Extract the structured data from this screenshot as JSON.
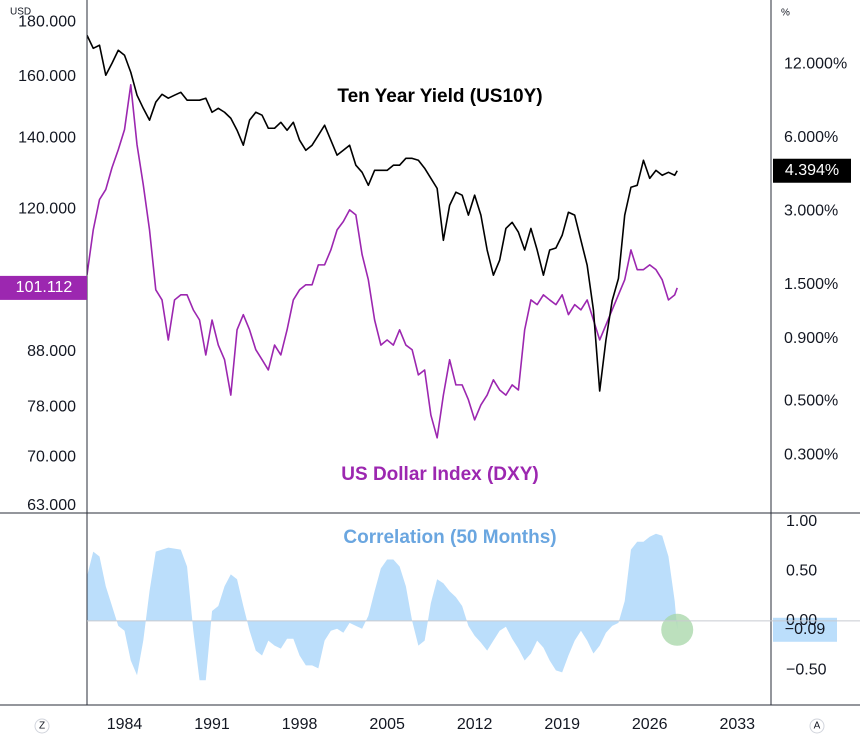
{
  "chart_data": {
    "type": "line",
    "log_scale": true,
    "grid": false,
    "y_unit": "USD",
    "y2_unit": "%",
    "scale_buttons": [
      "Z",
      "A"
    ],
    "x": [
      1981,
      1981.5,
      1982,
      1982.5,
      1983,
      1983.5,
      1984,
      1984.5,
      1985,
      1985.5,
      1986,
      1986.5,
      1987,
      1987.5,
      1988,
      1988.5,
      1989,
      1989.5,
      1990,
      1990.5,
      1991,
      1991.5,
      1992,
      1992.5,
      1993,
      1993.5,
      1994,
      1994.5,
      1995,
      1995.5,
      1996,
      1996.5,
      1997,
      1997.5,
      1998,
      1998.5,
      1999,
      1999.5,
      2000,
      2000.5,
      2001,
      2001.5,
      2002,
      2002.5,
      2003,
      2003.5,
      2004,
      2004.5,
      2005,
      2005.5,
      2006,
      2006.5,
      2007,
      2007.5,
      2008,
      2008.5,
      2009,
      2009.5,
      2010,
      2010.5,
      2011,
      2011.5,
      2012,
      2012.5,
      2013,
      2013.5,
      2014,
      2014.5,
      2015,
      2015.5,
      2016,
      2016.5,
      2017,
      2017.5,
      2018,
      2018.5,
      2019,
      2019.5,
      2020,
      2020.5,
      2021,
      2021.5,
      2022,
      2022.5,
      2023,
      2023.5,
      2024,
      2024.5,
      2025,
      2025.5,
      2026,
      2026.5,
      2027,
      2027.5,
      2028,
      2028.2
    ],
    "xlim": [
      1981,
      2035.7
    ],
    "xticks": [
      1984,
      1991,
      1998,
      2005,
      2012,
      2019,
      2026,
      2033
    ],
    "ylim": [
      62,
      189
    ],
    "yticks": [
      {
        "value": 180,
        "label": "180.000"
      },
      {
        "value": 160,
        "label": "160.000"
      },
      {
        "value": 140,
        "label": "140.000"
      },
      {
        "value": 120,
        "label": "120.000"
      },
      {
        "value": 88,
        "label": "88.000"
      },
      {
        "value": 78,
        "label": "78.000"
      },
      {
        "value": 70,
        "label": "70.000"
      },
      {
        "value": 63,
        "label": "63.000"
      }
    ],
    "y2lim": [
      0.174,
      22
    ],
    "y2ticks": [
      {
        "value": 12,
        "label": "12.000%"
      },
      {
        "value": 6,
        "label": "6.000%"
      },
      {
        "value": 3,
        "label": "3.000%"
      },
      {
        "value": 1.5,
        "label": "1.500%"
      },
      {
        "value": 0.9,
        "label": "0.900%"
      },
      {
        "value": 0.5,
        "label": "0.500%"
      },
      {
        "value": 0.3,
        "label": "0.300%"
      }
    ],
    "y3lim": [
      -0.85,
      1.09
    ],
    "y3ticks": [
      {
        "value": 1,
        "label": "1.00"
      },
      {
        "value": 0.5,
        "label": "0.50"
      },
      {
        "value": 0,
        "label": "0.00"
      },
      {
        "value": -0.5,
        "label": "−0.50"
      }
    ],
    "series": [
      {
        "name": "US Dollar Index (DXY)",
        "color": "#9c27b0",
        "axis": "y",
        "values": [
          104.0,
          114.7,
          122.5,
          125.2,
          131.3,
          136.5,
          142.6,
          157.2,
          138.0,
          126.5,
          114.7,
          100.7,
          98.5,
          90.3,
          98.5,
          99.6,
          99.6,
          96.4,
          94.3,
          87.4,
          94.3,
          89.3,
          86.5,
          80.1,
          92.3,
          95.4,
          92.3,
          88.4,
          86.5,
          84.6,
          89.3,
          87.4,
          92.3,
          98.5,
          100.7,
          101.8,
          101.8,
          106.3,
          106.3,
          109.8,
          114.7,
          116.8,
          119.8,
          118.5,
          108.7,
          102.9,
          94.3,
          89.3,
          90.3,
          89.3,
          92.3,
          89.3,
          88.4,
          83.7,
          84.6,
          76.7,
          73.0,
          80.1,
          86.5,
          81.9,
          81.9,
          79.3,
          75.9,
          78.4,
          80.1,
          82.8,
          81.0,
          80.1,
          81.9,
          81.0,
          92.3,
          98.5,
          97.5,
          99.6,
          98.5,
          97.5,
          99.6,
          95.4,
          97.5,
          96.4,
          98.5,
          94.3,
          90.3,
          93.3,
          96.4,
          99.6,
          102.9,
          109.8,
          105.2,
          105.2,
          106.3,
          105.2,
          102.9,
          98.5,
          99.6,
          101.112
        ]
      },
      {
        "name": "Ten Year Yield (US10Y)",
        "color": "#000000",
        "axis": "y2",
        "last_label": "4.394%",
        "values": [
          15.78,
          13.95,
          14.36,
          10.82,
          12.11,
          13.69,
          13.06,
          11.13,
          8.96,
          7.92,
          7.08,
          8.39,
          9.04,
          8.71,
          8.96,
          9.21,
          8.55,
          8.55,
          8.55,
          8.71,
          7.63,
          7.92,
          7.63,
          7.21,
          6.44,
          5.59,
          7.08,
          7.63,
          7.42,
          6.56,
          6.56,
          6.94,
          6.44,
          6.94,
          5.86,
          5.33,
          5.59,
          6.14,
          6.75,
          5.86,
          5.09,
          5.33,
          5.59,
          4.63,
          4.33,
          3.83,
          4.41,
          4.41,
          4.41,
          4.63,
          4.63,
          4.94,
          4.94,
          4.85,
          4.5,
          4.09,
          3.72,
          2.28,
          3.17,
          3.59,
          3.49,
          2.89,
          3.49,
          2.89,
          2.08,
          1.64,
          1.89,
          2.55,
          2.7,
          2.46,
          2.08,
          2.55,
          2.08,
          1.64,
          2.08,
          2.12,
          2.39,
          2.97,
          2.89,
          2.28,
          1.8,
          1.18,
          0.55,
          0.89,
          1.29,
          1.59,
          2.89,
          3.76,
          3.83,
          4.85,
          4.09,
          4.41,
          4.21,
          4.33,
          4.21,
          4.394
        ]
      },
      {
        "name": "Correlation (50 Months)",
        "color": "#bbdefb",
        "axis": "y3",
        "type": "area",
        "last_label": "−0.09",
        "values": [
          0.45,
          0.7,
          0.65,
          0.35,
          0.15,
          -0.05,
          -0.1,
          -0.4,
          -0.55,
          -0.2,
          0.3,
          0.7,
          0.72,
          0.74,
          0.73,
          0.72,
          0.55,
          -0.1,
          -0.6,
          -0.6,
          0.1,
          0.15,
          0.35,
          0.47,
          0.42,
          0.15,
          -0.1,
          -0.3,
          -0.35,
          -0.2,
          -0.25,
          -0.28,
          -0.18,
          -0.18,
          -0.35,
          -0.45,
          -0.45,
          -0.48,
          -0.2,
          -0.1,
          -0.08,
          -0.12,
          -0.02,
          -0.05,
          -0.08,
          0.05,
          0.3,
          0.53,
          0.62,
          0.62,
          0.55,
          0.35,
          0,
          -0.25,
          -0.2,
          0.18,
          0.42,
          0.38,
          0.3,
          0.24,
          0.15,
          -0.05,
          -0.15,
          -0.22,
          -0.3,
          -0.2,
          -0.1,
          -0.06,
          -0.18,
          -0.28,
          -0.4,
          -0.33,
          -0.2,
          -0.27,
          -0.4,
          -0.5,
          -0.52,
          -0.35,
          -0.2,
          -0.1,
          -0.2,
          -0.33,
          -0.25,
          -0.12,
          -0.05,
          -0.02,
          0.2,
          0.72,
          0.8,
          0.8,
          0.85,
          0.88,
          0.86,
          0.65,
          0.2,
          -0.09
        ]
      }
    ]
  }
}
